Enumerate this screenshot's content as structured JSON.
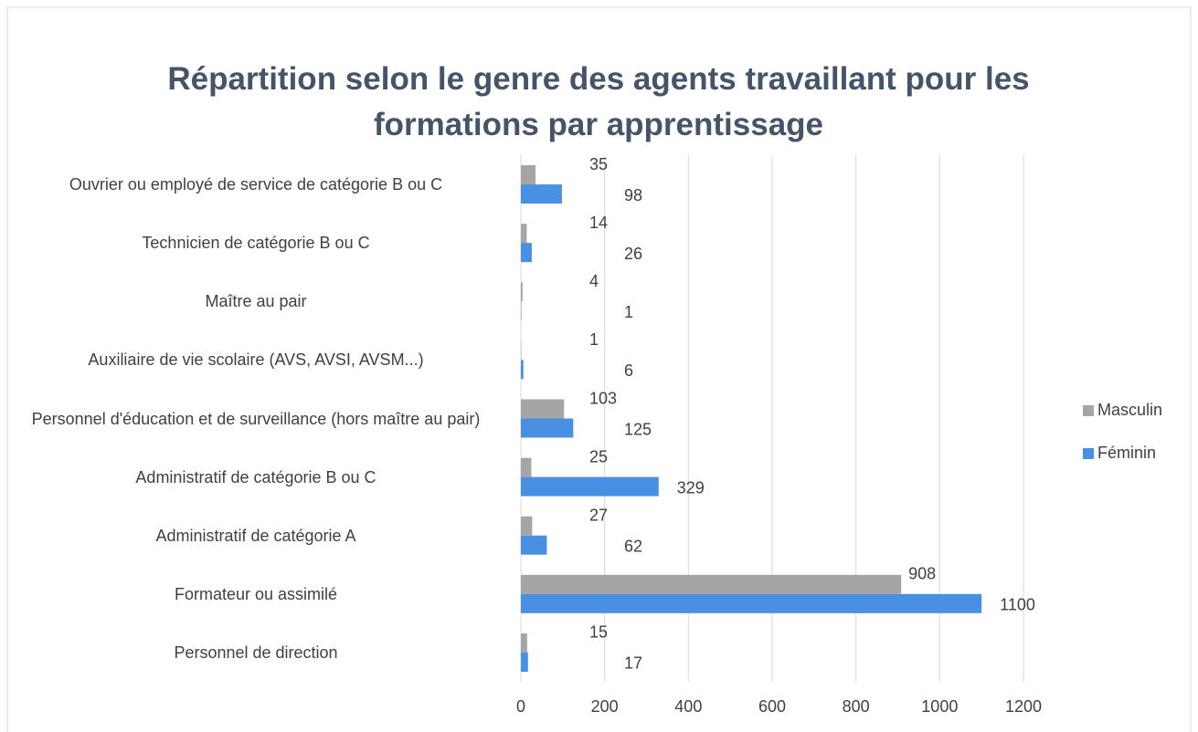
{
  "chart_data": {
    "type": "bar",
    "orientation": "horizontal",
    "title": "Répartition selon le genre des agents travaillant pour les formations par apprentissage",
    "categories": [
      "Ouvrier ou employé de service de catégorie B ou C",
      "Technicien de catégorie B ou C",
      "Maître au pair",
      "Auxiliaire de vie scolaire (AVS, AVSI, AVSM...)",
      "Personnel d'éducation et de surveillance (hors maître au pair)",
      "Administratif de catégorie B ou C",
      "Administratif de catégorie A",
      "Formateur ou assimilé",
      "Personnel de direction"
    ],
    "series": [
      {
        "name": "Masculin",
        "color": "#a5a5a5",
        "values": [
          35,
          14,
          4,
          1,
          103,
          25,
          27,
          908,
          15
        ]
      },
      {
        "name": "Féminin",
        "color": "#4a90e2",
        "values": [
          98,
          26,
          1,
          6,
          125,
          329,
          62,
          1100,
          17
        ]
      }
    ],
    "xlim": [
      0,
      1200
    ],
    "xticks": [
      0,
      200,
      400,
      600,
      800,
      1000,
      1200
    ],
    "grid": true,
    "legend": "right"
  }
}
